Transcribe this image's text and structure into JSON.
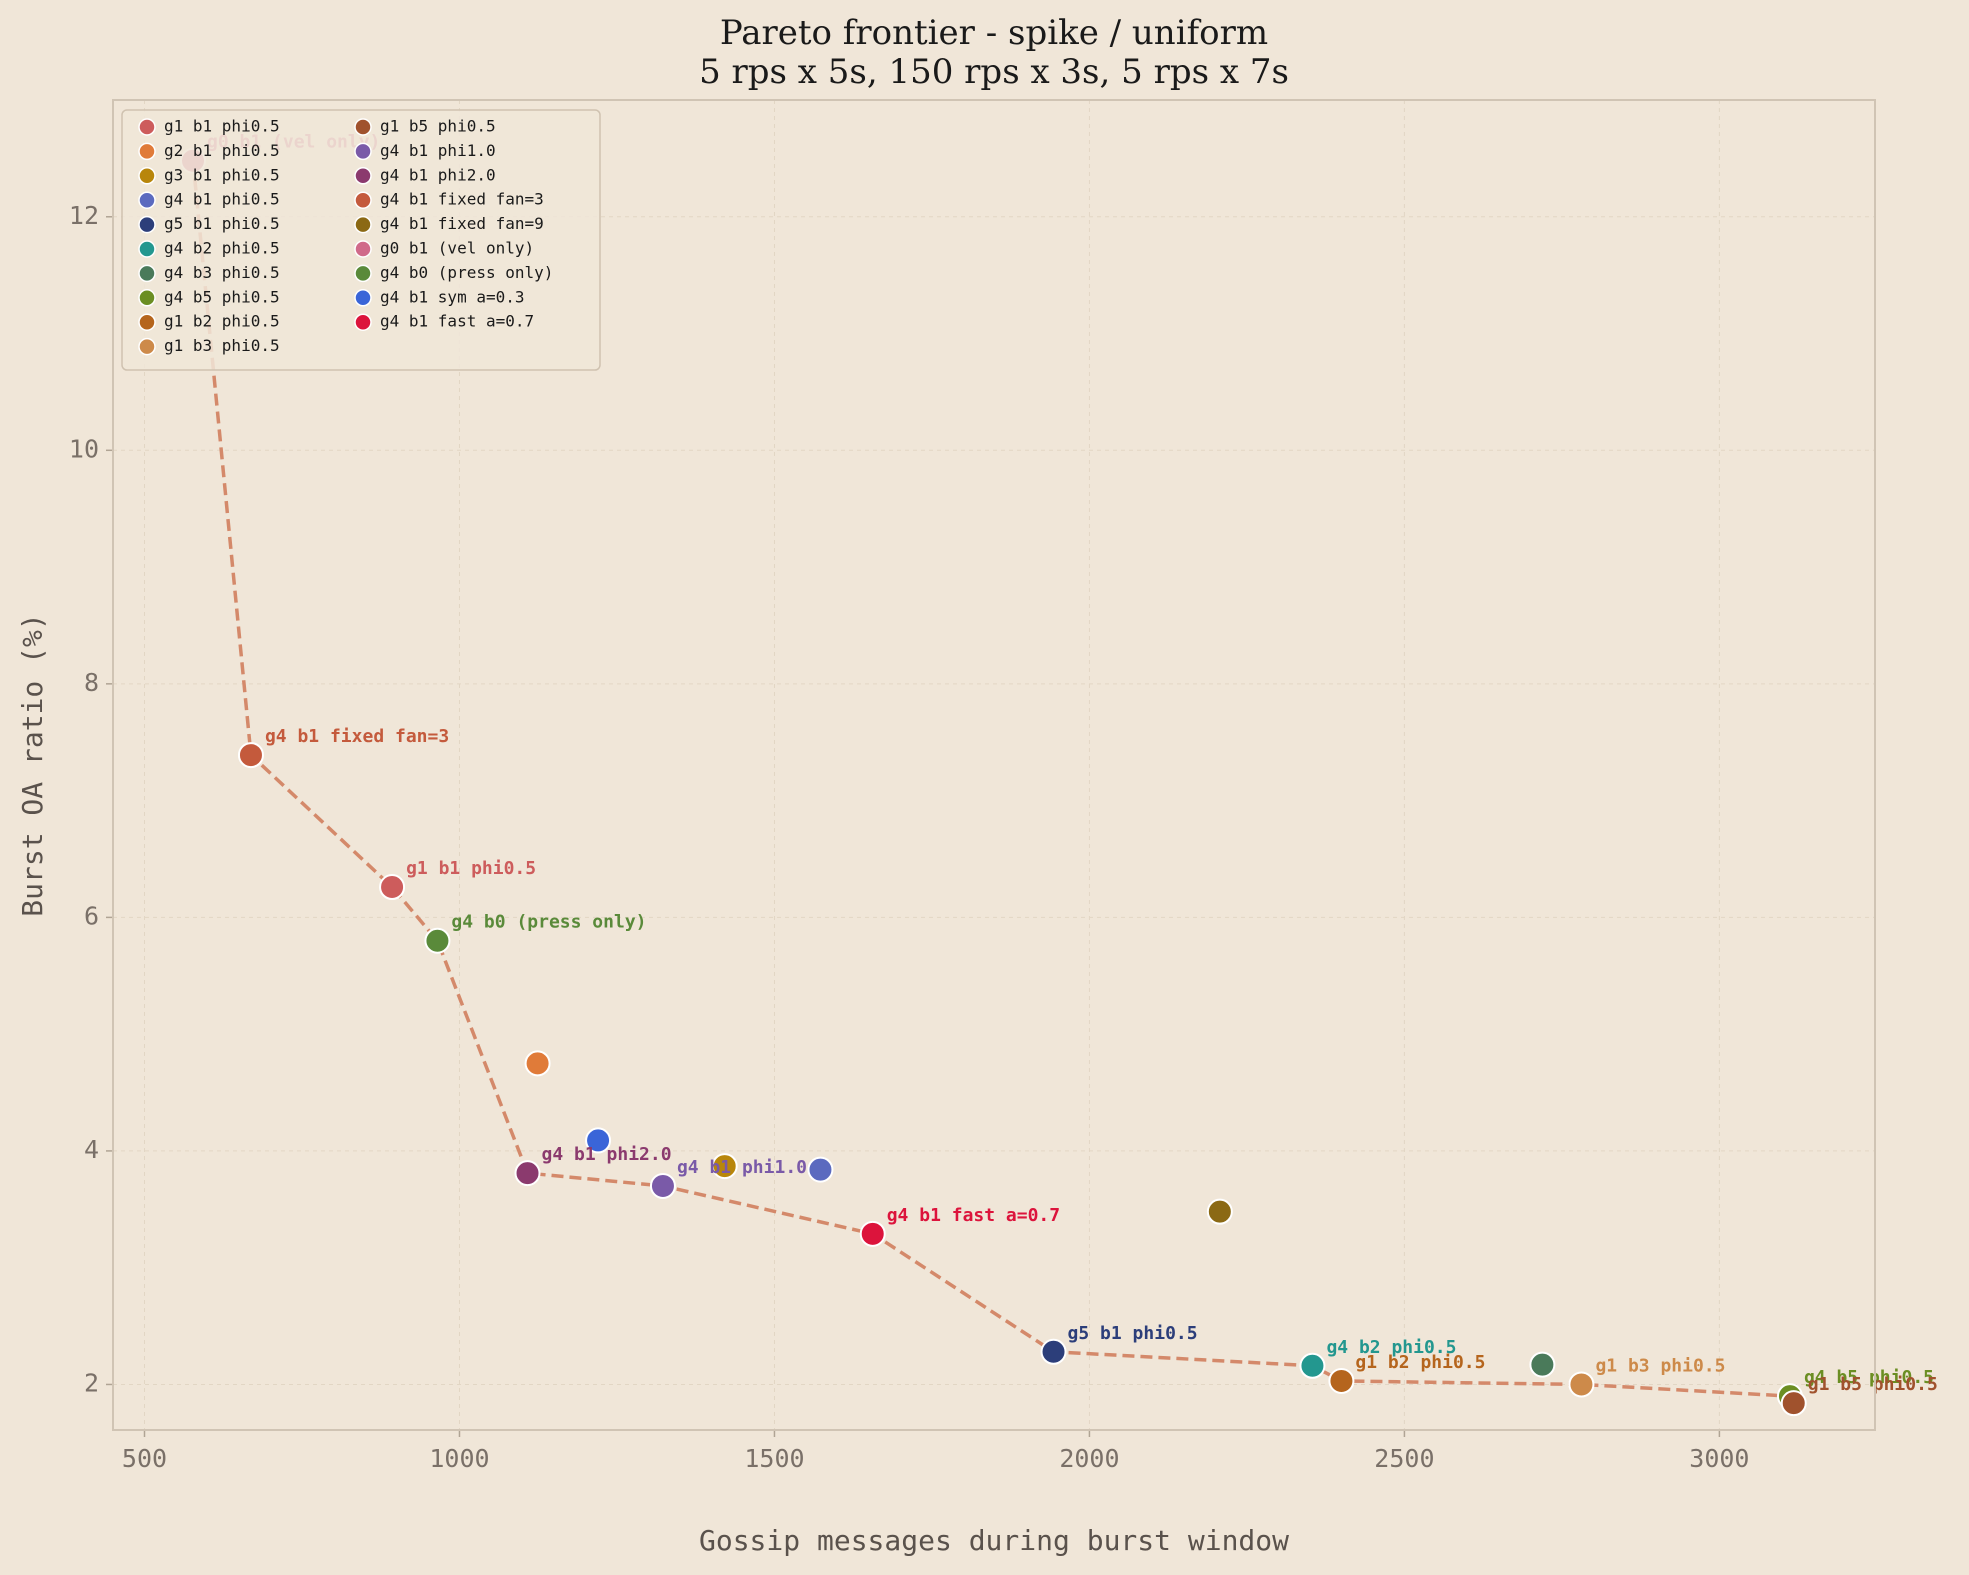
{
  "chart_data": {
    "type": "scatter",
    "title": "Pareto frontier - spike / uniform",
    "subtitle": "5 rps x 5s, 150 rps x 3s, 5 rps x 7s",
    "x_label": "Gossip messages during burst window",
    "y_label": "Burst OA ratio (%)",
    "xlim": [
      450,
      3247
    ],
    "ylim": [
      1.61,
      13.0
    ],
    "xticks": [
      500,
      1000,
      1500,
      2000,
      2500,
      3000
    ],
    "yticks": [
      2,
      4,
      6,
      8,
      10,
      12
    ],
    "grid": true,
    "legend": "upper left",
    "frontier_color": "#d4896a",
    "series": [
      {
        "name": "g1 b1 phi0.5",
        "color": "#cd5c5c",
        "x": [
          893
        ],
        "y": [
          6.26
        ],
        "pareto": true
      },
      {
        "name": "g2 b1 phi0.5",
        "color": "#e07b39",
        "x": [
          1124
        ],
        "y": [
          4.75
        ],
        "pareto": false
      },
      {
        "name": "g3 b1 phi0.5",
        "color": "#b8860b",
        "x": [
          1421
        ],
        "y": [
          3.87
        ],
        "pareto": false
      },
      {
        "name": "g4 b1 phi0.5",
        "color": "#5b6abf",
        "x": [
          1573
        ],
        "y": [
          3.84
        ],
        "pareto": false
      },
      {
        "name": "g5 b1 phi0.5",
        "color": "#2c3e7a",
        "x": [
          1943
        ],
        "y": [
          2.28
        ],
        "pareto": true
      },
      {
        "name": "g4 b2 phi0.5",
        "color": "#23978f",
        "x": [
          2354
        ],
        "y": [
          2.16
        ],
        "pareto": true
      },
      {
        "name": "g4 b3 phi0.5",
        "color": "#4a7a5a",
        "x": [
          2719
        ],
        "y": [
          2.17
        ],
        "pareto": false
      },
      {
        "name": "g4 b5 phi0.5",
        "color": "#6b8e23",
        "x": [
          3112
        ],
        "y": [
          1.9
        ],
        "pareto": true
      },
      {
        "name": "g1 b2 phi0.5",
        "color": "#b5651d",
        "x": [
          2400
        ],
        "y": [
          2.03
        ],
        "pareto": true
      },
      {
        "name": "g1 b3 phi0.5",
        "color": "#cd8a4a",
        "x": [
          2781
        ],
        "y": [
          2.0
        ],
        "pareto": true
      },
      {
        "name": "g1 b5 phi0.5",
        "color": "#a0522d",
        "x": [
          3118
        ],
        "y": [
          1.84
        ],
        "pareto": true
      },
      {
        "name": "g4 b1 phi1.0",
        "color": "#7a5aa8",
        "x": [
          1323
        ],
        "y": [
          3.7
        ],
        "pareto": true
      },
      {
        "name": "g4 b1 phi2.0",
        "color": "#8b3a6e",
        "x": [
          1108
        ],
        "y": [
          3.81
        ],
        "pareto": true
      },
      {
        "name": "g4 b1 fixed fan=3",
        "color": "#c45a3c",
        "x": [
          669
        ],
        "y": [
          7.39
        ],
        "pareto": true
      },
      {
        "name": "g4 b1 fixed fan=9",
        "color": "#8b6914",
        "x": [
          2207
        ],
        "y": [
          3.48
        ],
        "pareto": false
      },
      {
        "name": "g0 b1 (vel only)",
        "color": "#d06a8a",
        "x": [
          577
        ],
        "y": [
          12.48
        ],
        "pareto": true
      },
      {
        "name": "g4 b0 (press only)",
        "color": "#5a8a3a",
        "x": [
          965
        ],
        "y": [
          5.8
        ],
        "pareto": true
      },
      {
        "name": "g4 b1 sym a=0.3",
        "color": "#3a65d8",
        "x": [
          1220
        ],
        "y": [
          4.09
        ],
        "pareto": false
      },
      {
        "name": "g4 b1 fast a=0.7",
        "color": "#dc143c",
        "x": [
          1656
        ],
        "y": [
          3.29
        ],
        "pareto": true
      }
    ]
  }
}
